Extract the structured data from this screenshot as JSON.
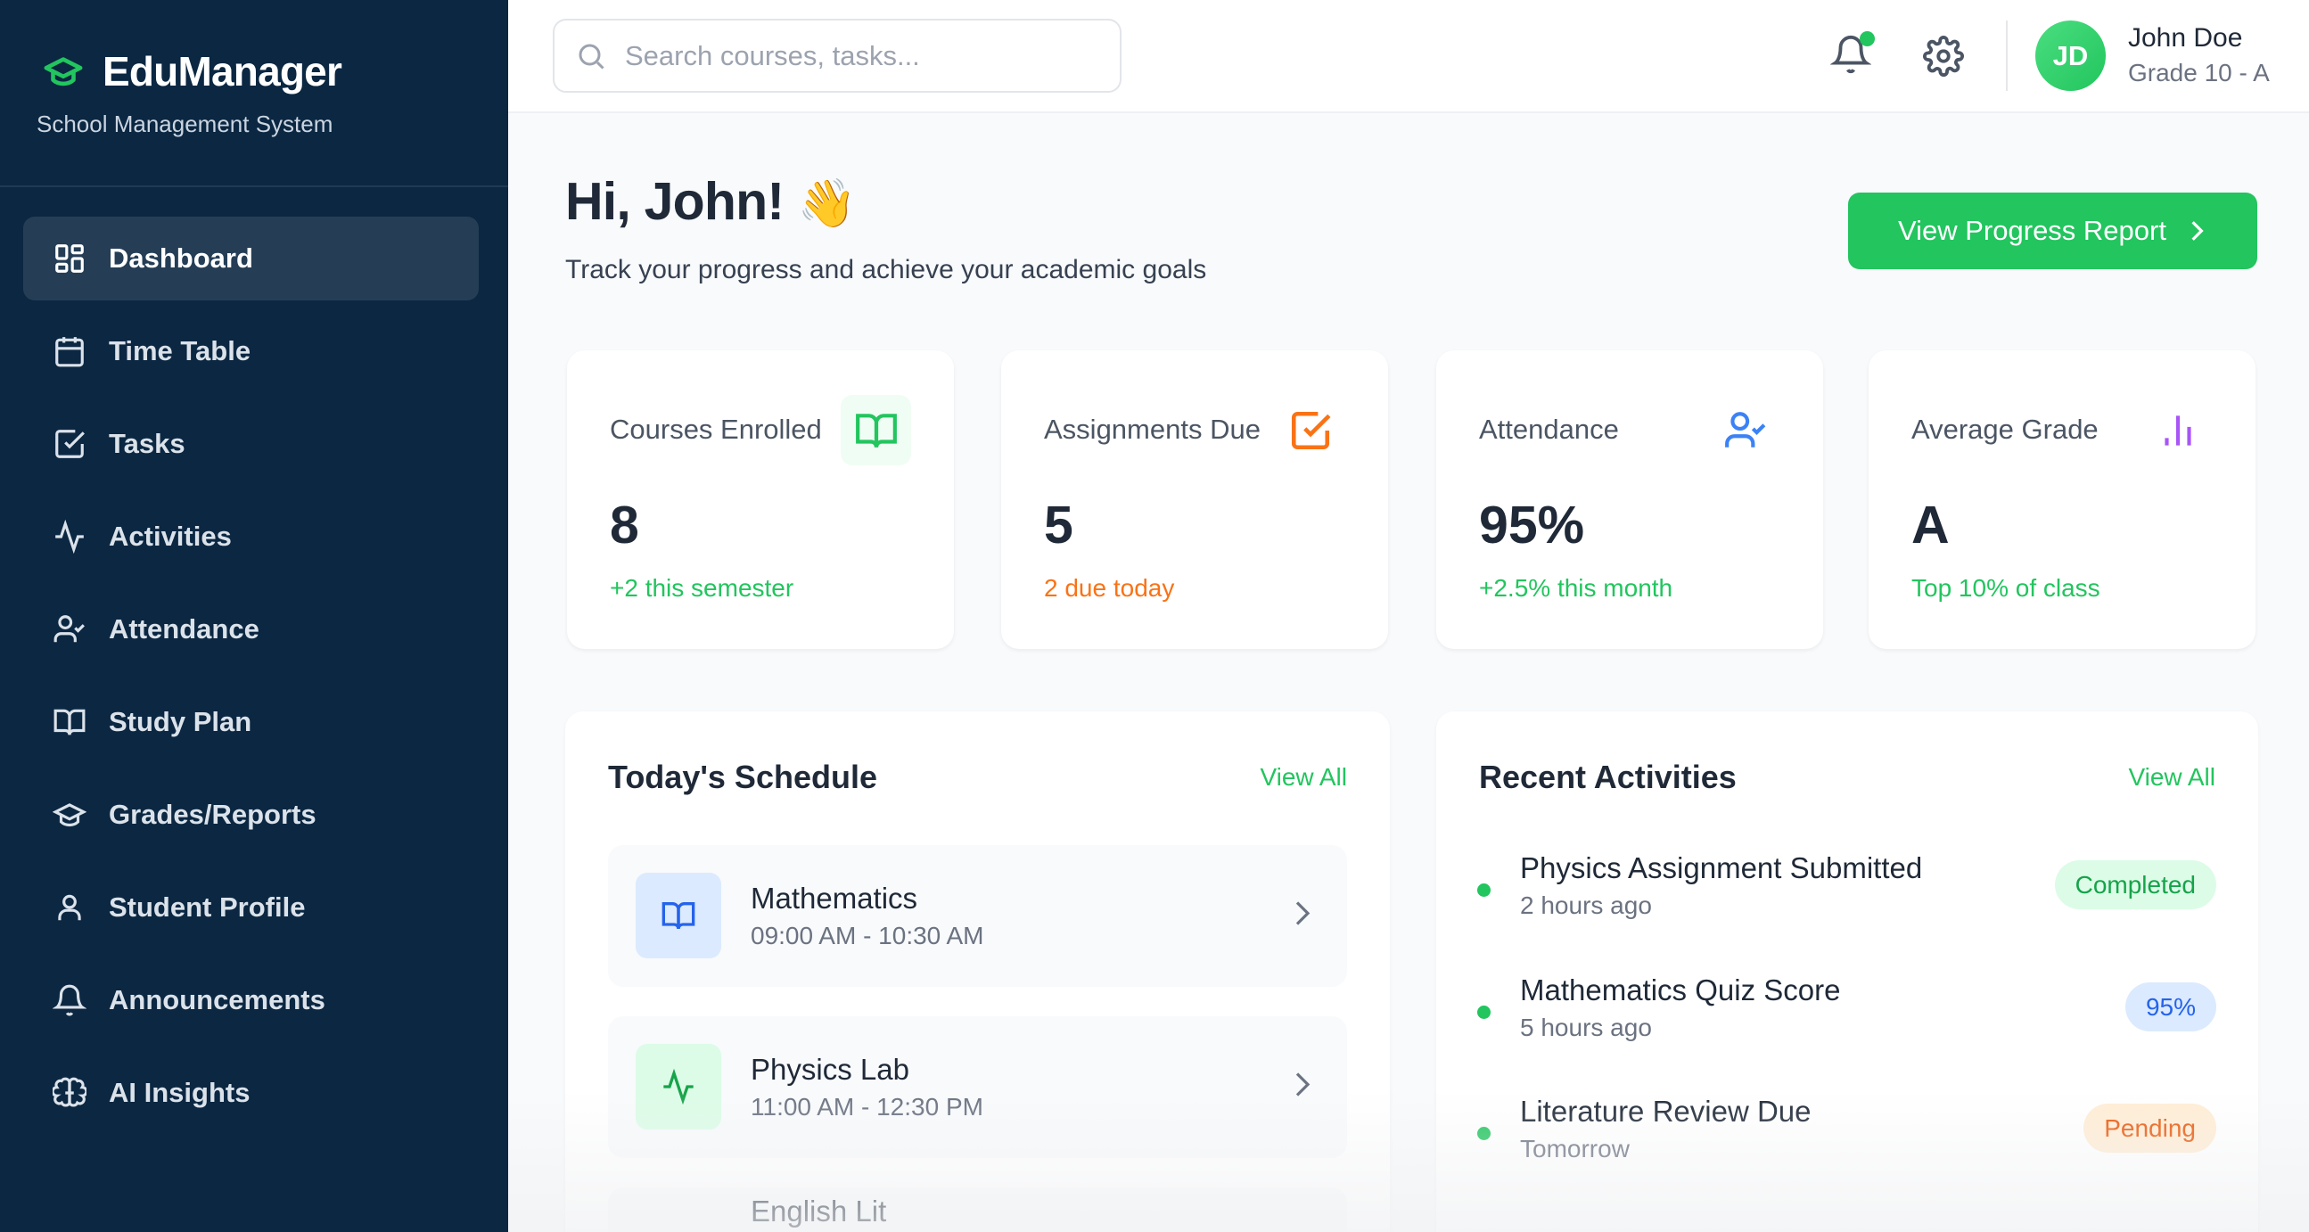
{
  "app": {
    "name": "EduManager",
    "subtitle": "School Management System"
  },
  "sidebar": {
    "items": [
      {
        "label": "Dashboard",
        "icon": "dashboard-icon",
        "active": true
      },
      {
        "label": "Time Table",
        "icon": "calendar-icon"
      },
      {
        "label": "Tasks",
        "icon": "check-square-icon"
      },
      {
        "label": "Activities",
        "icon": "activity-icon"
      },
      {
        "label": "Attendance",
        "icon": "user-check-icon"
      },
      {
        "label": "Study Plan",
        "icon": "book-open-icon"
      },
      {
        "label": "Grades/Reports",
        "icon": "graduation-cap-icon"
      },
      {
        "label": "Student Profile",
        "icon": "user-icon"
      },
      {
        "label": "Announcements",
        "icon": "bell-icon"
      },
      {
        "label": "AI Insights",
        "icon": "brain-icon"
      }
    ]
  },
  "header": {
    "search_placeholder": "Search courses, tasks...",
    "user": {
      "initials": "JD",
      "name": "John Doe",
      "grade": "Grade 10 - A"
    }
  },
  "main": {
    "greeting": "Hi, John!",
    "greeting_emoji": "👋",
    "subtitle": "Track your progress and achieve your academic goals",
    "progress_button": "View Progress Report",
    "stats": [
      {
        "label": "Courses Enrolled",
        "value": "8",
        "sub": "+2 this semester",
        "sub_color": "#22c55e",
        "icon": "book-open-icon",
        "icon_color": "#22c55e"
      },
      {
        "label": "Assignments Due",
        "value": "5",
        "sub": "2 due today",
        "sub_color": "#f97316",
        "icon": "check-square-icon",
        "icon_color": "#f97316"
      },
      {
        "label": "Attendance",
        "value": "95%",
        "sub": "+2.5% this month",
        "sub_color": "#22c55e",
        "icon": "user-check-icon",
        "icon_color": "#3b82f6"
      },
      {
        "label": "Average Grade",
        "value": "A",
        "sub": "Top 10% of class",
        "sub_color": "#22c55e",
        "icon": "bar-chart-icon",
        "icon_color": "#a855f7"
      }
    ],
    "schedule": {
      "title": "Today's Schedule",
      "view_all": "View All",
      "items": [
        {
          "title": "Mathematics",
          "time": "09:00 AM - 10:30 AM",
          "icon": "book-open-icon"
        },
        {
          "title": "Physics Lab",
          "time": "11:00 AM - 12:30 PM",
          "icon": "activity-icon"
        },
        {
          "title": "English Lit"
        }
      ]
    },
    "activities": {
      "title": "Recent Activities",
      "view_all": "View All",
      "items": [
        {
          "title": "Physics Assignment Submitted",
          "time": "2 hours ago",
          "badge": "Completed"
        },
        {
          "title": "Mathematics Quiz Score",
          "time": "5 hours ago",
          "badge": "95%"
        },
        {
          "title": "Literature Review Due",
          "time": "Tomorrow",
          "badge": "Pending"
        }
      ]
    }
  },
  "colors": {
    "sidebar_bg": "#0b2742",
    "accent": "#22c55e",
    "page_bg": "#f8fafc"
  }
}
